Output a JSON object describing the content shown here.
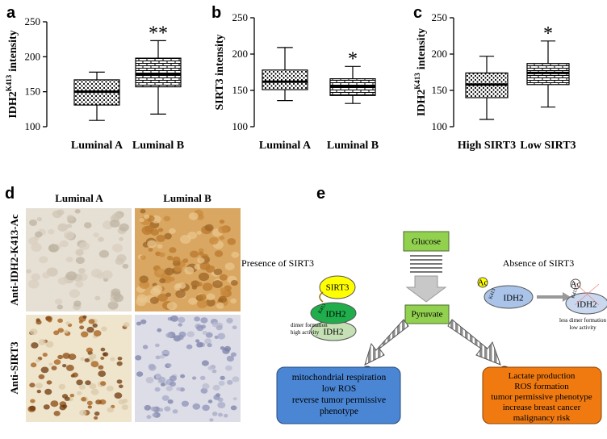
{
  "chart_data": [
    {
      "type": "box",
      "label": "a",
      "ylabel": {
        "base": "IDH2",
        "sup": "K413",
        "rest": "intensity"
      },
      "categories": [
        "Luminal A",
        "Luminal B"
      ],
      "values": [
        {
          "min": 109,
          "q1": 131,
          "median": 150,
          "q3": 167,
          "max": 178
        },
        {
          "min": 118,
          "q1": 157,
          "median": 175,
          "q3": 198,
          "max": 223
        }
      ],
      "patterns": [
        "dots",
        "bricks"
      ],
      "annotations": [
        {
          "x": "Luminal B",
          "text": "**"
        }
      ],
      "ylim": [
        100,
        250
      ],
      "yticks": [
        100,
        150,
        200,
        250
      ]
    },
    {
      "type": "box",
      "label": "b",
      "ylabel": "SIRT3 intensity",
      "categories": [
        "Luminal A",
        "Luminal B"
      ],
      "values": [
        {
          "min": 136,
          "q1": 151,
          "median": 162,
          "q3": 178,
          "max": 209
        },
        {
          "min": 132,
          "q1": 143,
          "median": 156,
          "q3": 166,
          "max": 183
        }
      ],
      "patterns": [
        "dots",
        "bricks"
      ],
      "annotations": [
        {
          "x": "Luminal B",
          "text": "*"
        }
      ],
      "ylim": [
        100,
        250
      ],
      "yticks": [
        100,
        150,
        200,
        250
      ]
    },
    {
      "type": "box",
      "label": "c",
      "ylabel": {
        "base": "IDH2",
        "sup": "K413",
        "rest": "intensity"
      },
      "categories": [
        "High SIRT3",
        "Low SIRT3"
      ],
      "values": [
        {
          "min": 110,
          "q1": 140,
          "median": 158,
          "q3": 174,
          "max": 197
        },
        {
          "min": 127,
          "q1": 158,
          "median": 174,
          "q3": 187,
          "max": 218
        }
      ],
      "patterns": [
        "dots",
        "bricks"
      ],
      "annotations": [
        {
          "x": "Low SIRT3",
          "text": "*"
        }
      ],
      "ylim": [
        100,
        250
      ],
      "yticks": [
        100,
        150,
        200,
        250
      ]
    }
  ],
  "panel_d": {
    "label": "d",
    "columns": [
      "Luminal A",
      "Luminal B"
    ],
    "rows": [
      "Anti-IDH2-K413-Ac",
      "Anti-SIRT3"
    ]
  },
  "panel_e": {
    "label": "e",
    "glucose": "Glucose",
    "pyruvate": "Pyruvate",
    "presence": "Presence of SIRT3",
    "absence": "Absence of SIRT3",
    "sirt3": "SIRT3",
    "idh2": "IDH2",
    "k413": "K413",
    "ac": "Ac",
    "high_note": [
      "dimer formation",
      "high activity"
    ],
    "low_note": [
      "less dimer formation",
      "low activity"
    ],
    "step1": "1",
    "step2": "2",
    "outcome1": [
      "mitochondrial respiration",
      "low ROS",
      "reverse tumor permissive",
      "phenotype"
    ],
    "outcome2": [
      "Lactate production",
      "ROS formation",
      "tumor permissive phenotype",
      "increase breast cancer",
      "malignancy risk"
    ]
  }
}
